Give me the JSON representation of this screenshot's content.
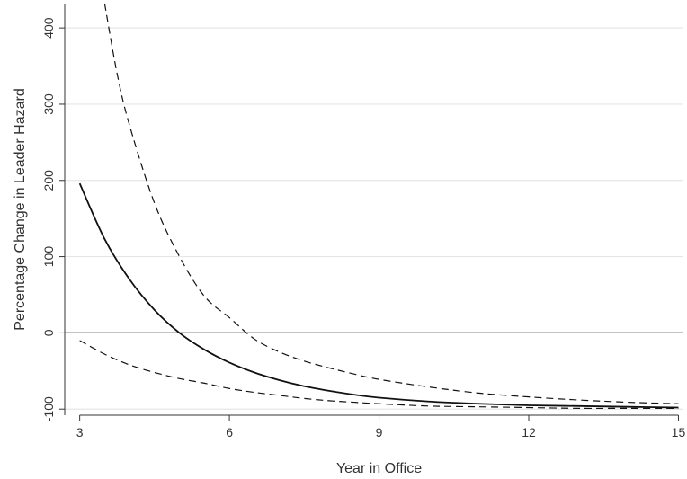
{
  "chart_data": {
    "type": "line",
    "title": "",
    "xlabel": "Year in Office",
    "ylabel": "Percentage Change in Leader Hazard",
    "xlim": [
      2.7,
      15.1
    ],
    "ylim": [
      -108,
      432
    ],
    "xticks": [
      3,
      6,
      9,
      12,
      15
    ],
    "yticks": [
      -100,
      0,
      100,
      200,
      300,
      400
    ],
    "grid": "horizontal",
    "legend": "none",
    "reference_line": {
      "y": 0
    },
    "colors": {
      "line": "#111111",
      "grid": "#e6e6e6",
      "axis": "#333333",
      "text": "#333333"
    },
    "series": [
      {
        "style": "solid",
        "x": [
          3,
          3.5,
          4,
          4.5,
          5,
          5.5,
          6,
          6.5,
          7,
          7.5,
          8,
          8.5,
          9,
          10,
          11,
          12,
          13,
          14,
          15
        ],
        "y": [
          196,
          123,
          70,
          30,
          0,
          -22,
          -39,
          -52,
          -62,
          -70,
          -76,
          -81,
          -85,
          -90,
          -93,
          -95,
          -96,
          -97,
          -98
        ]
      },
      {
        "style": "dashed",
        "x": [
          3.5,
          3.75,
          4,
          4.5,
          5,
          5.5,
          6,
          6.5,
          7,
          7.5,
          8,
          8.5,
          9,
          10,
          11,
          12,
          13,
          14,
          15
        ],
        "y": [
          432,
          340,
          272,
          170,
          100,
          48,
          20,
          -8,
          -25,
          -37,
          -46,
          -54,
          -61,
          -71,
          -79,
          -84,
          -88,
          -91,
          -93
        ]
      },
      {
        "style": "dashed",
        "x": [
          3,
          3.5,
          4,
          4.5,
          5,
          5.5,
          6,
          6.5,
          7,
          7.5,
          8,
          8.5,
          9,
          10,
          11,
          12,
          13,
          14,
          15
        ],
        "y": [
          -10,
          -28,
          -42,
          -52,
          -60,
          -66,
          -73,
          -78,
          -82,
          -86,
          -89,
          -91,
          -93,
          -96,
          -97,
          -98,
          -99,
          -99,
          -99
        ]
      }
    ]
  }
}
